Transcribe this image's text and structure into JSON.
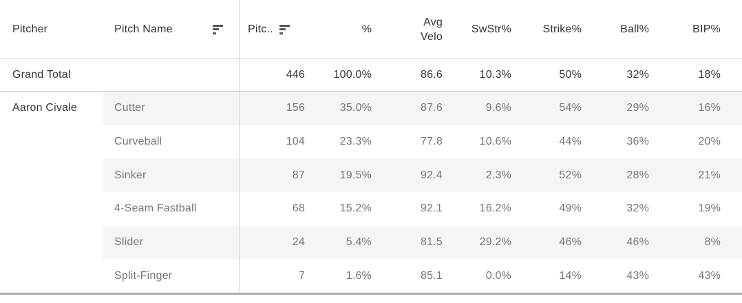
{
  "table": {
    "columns": {
      "pitcher": "Pitcher",
      "pitch_name": "Pitch Name",
      "pitches": "Pitc..",
      "pct": "%",
      "avg_velo_line1": "Avg",
      "avg_velo_line2": "Velo",
      "swstr": "SwStr%",
      "strike": "Strike%",
      "ball": "Ball%",
      "bip": "BIP%"
    },
    "pitcher_name": "Aaron Civale",
    "grand_total": {
      "label": "Grand Total",
      "values": [
        "446",
        "100.0%",
        "86.6",
        "10.3%",
        "50%",
        "32%",
        "18%"
      ]
    },
    "rows": [
      {
        "pitch": "Cutter",
        "values": [
          "156",
          "35.0%",
          "87.6",
          "9.6%",
          "54%",
          "29%",
          "16%"
        ]
      },
      {
        "pitch": "Curveball",
        "values": [
          "104",
          "23.3%",
          "77.8",
          "10.6%",
          "44%",
          "36%",
          "20%"
        ]
      },
      {
        "pitch": "Sinker",
        "values": [
          "87",
          "19.5%",
          "92.4",
          "2.3%",
          "52%",
          "28%",
          "21%"
        ]
      },
      {
        "pitch": "4-Seam Fastball",
        "values": [
          "68",
          "15.2%",
          "92.1",
          "16.2%",
          "49%",
          "32%",
          "19%"
        ]
      },
      {
        "pitch": "Slider",
        "values": [
          "24",
          "5.4%",
          "81.5",
          "29.2%",
          "46%",
          "46%",
          "8%"
        ]
      },
      {
        "pitch": "Split-Finger",
        "values": [
          "7",
          "1.6%",
          "85.1",
          "0.0%",
          "14%",
          "43%",
          "43%"
        ]
      }
    ],
    "icons": {
      "sort_icon": "descending-bars-sort-icon"
    },
    "colors": {
      "dark_text": "#333333",
      "gray_text": "#767676",
      "row_shade": "#f5f5f5",
      "rule_light": "#cbcbcb",
      "rule_bottom": "#ababab",
      "divider": "#d6d6d6",
      "icon": "#555555"
    }
  },
  "chart_data": {
    "type": "table",
    "title": "Pitch mix statistics for Aaron Civale",
    "columns": [
      "Pitcher",
      "Pitch Name",
      "Pitches",
      "%",
      "Avg Velo",
      "SwStr%",
      "Strike%",
      "Ball%",
      "BIP%"
    ],
    "rows": [
      [
        "Grand Total",
        "",
        446,
        "100.0%",
        86.6,
        "10.3%",
        "50%",
        "32%",
        "18%"
      ],
      [
        "Aaron Civale",
        "Cutter",
        156,
        "35.0%",
        87.6,
        "9.6%",
        "54%",
        "29%",
        "16%"
      ],
      [
        "Aaron Civale",
        "Curveball",
        104,
        "23.3%",
        77.8,
        "10.6%",
        "44%",
        "36%",
        "20%"
      ],
      [
        "Aaron Civale",
        "Sinker",
        87,
        "19.5%",
        92.4,
        "2.3%",
        "52%",
        "28%",
        "21%"
      ],
      [
        "Aaron Civale",
        "4-Seam Fastball",
        68,
        "15.2%",
        92.1,
        "16.2%",
        "49%",
        "32%",
        "19%"
      ],
      [
        "Aaron Civale",
        "Slider",
        24,
        "5.4%",
        81.5,
        "29.2%",
        "46%",
        "46%",
        "8%"
      ],
      [
        "Aaron Civale",
        "Split-Finger",
        7,
        "1.6%",
        85.1,
        "0.0%",
        "14%",
        "43%",
        "43%"
      ]
    ]
  }
}
